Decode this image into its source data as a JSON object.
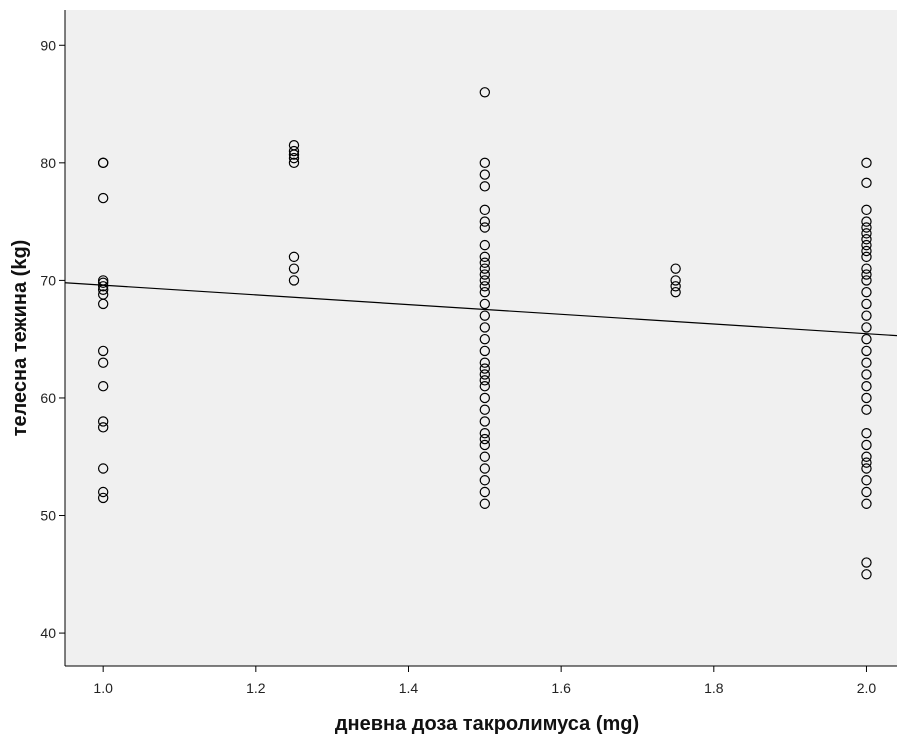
{
  "chart_data": {
    "type": "scatter",
    "xlabel": "дневна доза такролимуса (mg)",
    "ylabel": "телесна тежина (kg)",
    "xlim": [
      0.95,
      2.04
    ],
    "ylim": [
      37.2,
      93
    ],
    "x_ticks": [
      1.0,
      1.2,
      1.4,
      1.6,
      1.8,
      2.0
    ],
    "x_tick_labels": [
      "1.0",
      "1.2",
      "1.4",
      "1.6",
      "1.8",
      "2.0"
    ],
    "y_ticks": [
      40,
      50,
      60,
      70,
      80,
      90
    ],
    "y_tick_labels": [
      "40",
      "50",
      "60",
      "70",
      "80",
      "90"
    ],
    "grid": false,
    "background": "#f0f0f0",
    "marker_color": "#000000",
    "fit_line": {
      "x": [
        0.95,
        2.04
      ],
      "y": [
        69.8,
        65.3
      ]
    },
    "points": [
      {
        "x": 1.0,
        "y": 80
      },
      {
        "x": 1.0,
        "y": 80
      },
      {
        "x": 1.0,
        "y": 77
      },
      {
        "x": 1.0,
        "y": 70
      },
      {
        "x": 1.0,
        "y": 69.8
      },
      {
        "x": 1.0,
        "y": 69.5
      },
      {
        "x": 1.0,
        "y": 69.2
      },
      {
        "x": 1.0,
        "y": 68.8
      },
      {
        "x": 1.0,
        "y": 68
      },
      {
        "x": 1.0,
        "y": 64
      },
      {
        "x": 1.0,
        "y": 63
      },
      {
        "x": 1.0,
        "y": 61
      },
      {
        "x": 1.0,
        "y": 58
      },
      {
        "x": 1.0,
        "y": 57.5
      },
      {
        "x": 1.0,
        "y": 54
      },
      {
        "x": 1.0,
        "y": 52
      },
      {
        "x": 1.0,
        "y": 51.5
      },
      {
        "x": 1.25,
        "y": 81.5
      },
      {
        "x": 1.25,
        "y": 81
      },
      {
        "x": 1.25,
        "y": 80.7
      },
      {
        "x": 1.25,
        "y": 80.4
      },
      {
        "x": 1.25,
        "y": 80
      },
      {
        "x": 1.25,
        "y": 72
      },
      {
        "x": 1.25,
        "y": 71
      },
      {
        "x": 1.25,
        "y": 70
      },
      {
        "x": 1.5,
        "y": 86
      },
      {
        "x": 1.5,
        "y": 80
      },
      {
        "x": 1.5,
        "y": 79
      },
      {
        "x": 1.5,
        "y": 78
      },
      {
        "x": 1.5,
        "y": 76
      },
      {
        "x": 1.5,
        "y": 75
      },
      {
        "x": 1.5,
        "y": 74.5
      },
      {
        "x": 1.5,
        "y": 73
      },
      {
        "x": 1.5,
        "y": 72
      },
      {
        "x": 1.5,
        "y": 71.5
      },
      {
        "x": 1.5,
        "y": 71
      },
      {
        "x": 1.5,
        "y": 70.5
      },
      {
        "x": 1.5,
        "y": 70
      },
      {
        "x": 1.5,
        "y": 69.5
      },
      {
        "x": 1.5,
        "y": 69
      },
      {
        "x": 1.5,
        "y": 68
      },
      {
        "x": 1.5,
        "y": 67
      },
      {
        "x": 1.5,
        "y": 66
      },
      {
        "x": 1.5,
        "y": 65
      },
      {
        "x": 1.5,
        "y": 64
      },
      {
        "x": 1.5,
        "y": 63
      },
      {
        "x": 1.5,
        "y": 62.5
      },
      {
        "x": 1.5,
        "y": 62
      },
      {
        "x": 1.5,
        "y": 61.5
      },
      {
        "x": 1.5,
        "y": 61
      },
      {
        "x": 1.5,
        "y": 60
      },
      {
        "x": 1.5,
        "y": 59
      },
      {
        "x": 1.5,
        "y": 58
      },
      {
        "x": 1.5,
        "y": 57
      },
      {
        "x": 1.5,
        "y": 56.5
      },
      {
        "x": 1.5,
        "y": 56
      },
      {
        "x": 1.5,
        "y": 55
      },
      {
        "x": 1.5,
        "y": 54
      },
      {
        "x": 1.5,
        "y": 53
      },
      {
        "x": 1.5,
        "y": 52
      },
      {
        "x": 1.5,
        "y": 51
      },
      {
        "x": 1.75,
        "y": 71
      },
      {
        "x": 1.75,
        "y": 70
      },
      {
        "x": 1.75,
        "y": 69.5
      },
      {
        "x": 1.75,
        "y": 69
      },
      {
        "x": 2.0,
        "y": 80
      },
      {
        "x": 2.0,
        "y": 78.3
      },
      {
        "x": 2.0,
        "y": 76
      },
      {
        "x": 2.0,
        "y": 75
      },
      {
        "x": 2.0,
        "y": 74.5
      },
      {
        "x": 2.0,
        "y": 74
      },
      {
        "x": 2.0,
        "y": 73.5
      },
      {
        "x": 2.0,
        "y": 73
      },
      {
        "x": 2.0,
        "y": 72.5
      },
      {
        "x": 2.0,
        "y": 72
      },
      {
        "x": 2.0,
        "y": 71
      },
      {
        "x": 2.0,
        "y": 70.5
      },
      {
        "x": 2.0,
        "y": 70
      },
      {
        "x": 2.0,
        "y": 69
      },
      {
        "x": 2.0,
        "y": 68
      },
      {
        "x": 2.0,
        "y": 67
      },
      {
        "x": 2.0,
        "y": 66
      },
      {
        "x": 2.0,
        "y": 65
      },
      {
        "x": 2.0,
        "y": 64
      },
      {
        "x": 2.0,
        "y": 63
      },
      {
        "x": 2.0,
        "y": 62
      },
      {
        "x": 2.0,
        "y": 61
      },
      {
        "x": 2.0,
        "y": 60
      },
      {
        "x": 2.0,
        "y": 59
      },
      {
        "x": 2.0,
        "y": 57
      },
      {
        "x": 2.0,
        "y": 56
      },
      {
        "x": 2.0,
        "y": 55
      },
      {
        "x": 2.0,
        "y": 54.5
      },
      {
        "x": 2.0,
        "y": 54
      },
      {
        "x": 2.0,
        "y": 53
      },
      {
        "x": 2.0,
        "y": 52
      },
      {
        "x": 2.0,
        "y": 51
      },
      {
        "x": 2.0,
        "y": 46
      },
      {
        "x": 2.0,
        "y": 45
      }
    ]
  }
}
